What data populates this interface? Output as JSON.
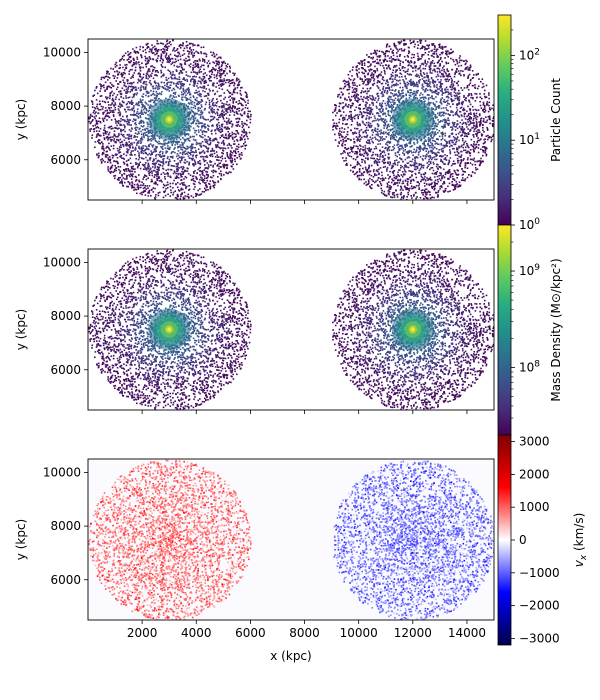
{
  "chart_data": [
    {
      "type": "heatmap",
      "panel": "particle-count",
      "xlabel": "",
      "ylabel": "y (kpc)",
      "xlim": [
        0,
        15000
      ],
      "ylim": [
        4500,
        10500
      ],
      "xticks": [
        2000,
        4000,
        6000,
        8000,
        10000,
        12000,
        14000
      ],
      "yticks": [
        6000,
        8000,
        10000
      ],
      "ytick_labels": [
        "6000",
        "8000",
        "10000"
      ],
      "colormap": "viridis",
      "colorbar": {
        "label": "Particle Count",
        "scale": "log",
        "range": [
          1,
          300
        ],
        "ticks": [
          1,
          10,
          100
        ],
        "tick_labels": [
          "10^0",
          "10^1",
          "10^2"
        ]
      },
      "clusters": [
        {
          "center_x": 3000,
          "center_y": 7500,
          "radius": 3000
        },
        {
          "center_x": 12000,
          "center_y": 7500,
          "radius": 3000
        }
      ]
    },
    {
      "type": "heatmap",
      "panel": "mass-density",
      "xlabel": "",
      "ylabel": "y (kpc)",
      "xlim": [
        0,
        15000
      ],
      "ylim": [
        4500,
        10500
      ],
      "xticks": [
        2000,
        4000,
        6000,
        8000,
        10000,
        12000,
        14000
      ],
      "yticks": [
        6000,
        8000,
        10000
      ],
      "ytick_labels": [
        "6000",
        "8000",
        "10000"
      ],
      "colormap": "viridis",
      "colorbar": {
        "label": "Mass Density (M⊙/kpc²)",
        "scale": "log",
        "range": [
          20000000,
          3000000000
        ],
        "ticks": [
          100000000,
          1000000000
        ],
        "tick_labels": [
          "10^8",
          "10^9"
        ]
      },
      "clusters": [
        {
          "center_x": 3000,
          "center_y": 7500,
          "radius": 3000
        },
        {
          "center_x": 12000,
          "center_y": 7500,
          "radius": 3000
        }
      ]
    },
    {
      "type": "heatmap",
      "panel": "velocity-x",
      "xlabel": "x (kpc)",
      "ylabel": "y (kpc)",
      "xlim": [
        0,
        15000
      ],
      "ylim": [
        4500,
        10500
      ],
      "xticks": [
        2000,
        4000,
        6000,
        8000,
        10000,
        12000,
        14000
      ],
      "xtick_labels": [
        "2000",
        "4000",
        "6000",
        "8000",
        "10000",
        "12000",
        "14000"
      ],
      "yticks": [
        6000,
        8000,
        10000
      ],
      "ytick_labels": [
        "6000",
        "8000",
        "10000"
      ],
      "colormap": "seismic",
      "colorbar": {
        "label": "vx (km/s)",
        "label_main": "v",
        "label_sub": "x",
        "label_unit": " (km/s)",
        "scale": "linear",
        "range": [
          -3200,
          3200
        ],
        "ticks": [
          -3000,
          -2000,
          -1000,
          0,
          1000,
          2000,
          3000
        ],
        "tick_labels": [
          "−3000",
          "−2000",
          "−1000",
          "0",
          "1000",
          "2000",
          "3000"
        ]
      },
      "clusters": [
        {
          "center_x": 3000,
          "center_y": 7500,
          "radius": 3000,
          "vx": 1000
        },
        {
          "center_x": 12000,
          "center_y": 7500,
          "radius": 3000,
          "vx": -1000
        }
      ]
    }
  ]
}
